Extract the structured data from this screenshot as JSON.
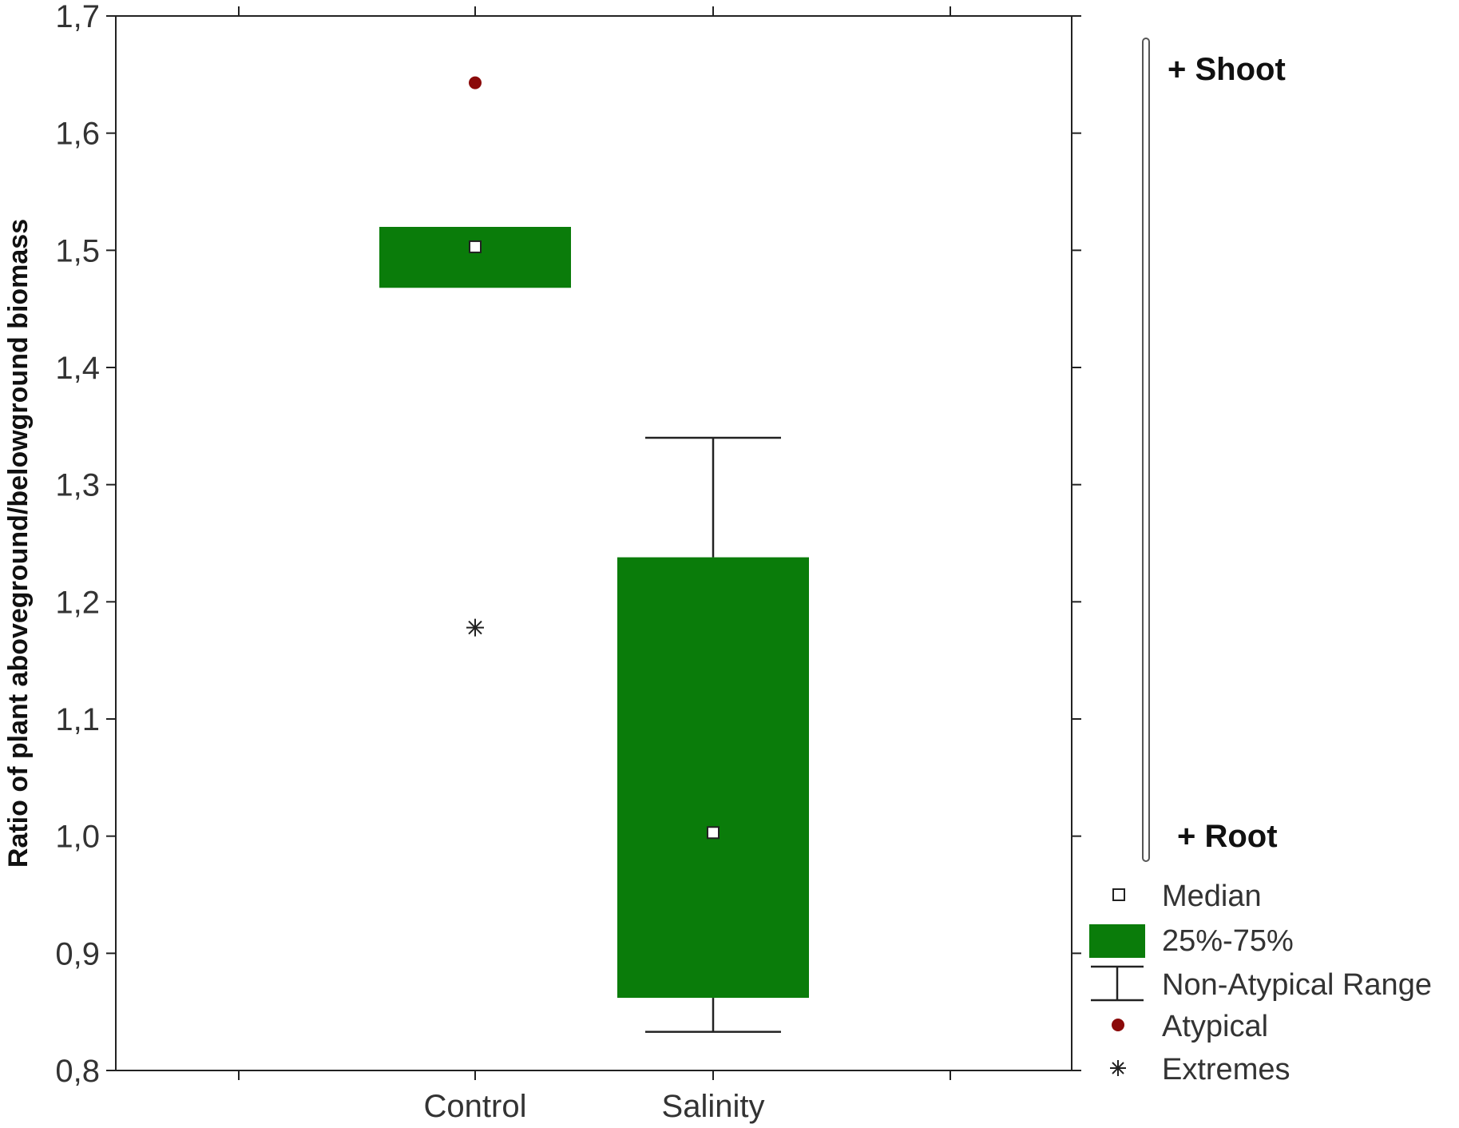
{
  "chart_data": {
    "type": "boxplot",
    "ylabel": "Ratio of plant aboveground/belowground biomass",
    "xlabel": "",
    "ylim": [
      0.8,
      1.7
    ],
    "yticks": [
      0.8,
      0.9,
      1.0,
      1.1,
      1.2,
      1.3,
      1.4,
      1.5,
      1.6,
      1.7
    ],
    "ytick_labels": [
      "0,8",
      "0,9",
      "1,0",
      "1,1",
      "1,2",
      "1,3",
      "1,4",
      "1,5",
      "1,6",
      "1,7"
    ],
    "categories": [
      "Control",
      "Salinity"
    ],
    "groups": [
      {
        "category": "Control",
        "median": 1.503,
        "q1": 1.468,
        "q3": 1.52,
        "whisker_low": null,
        "whisker_high": null,
        "atypical": [
          1.643
        ],
        "extremes": [
          1.178
        ]
      },
      {
        "category": "Salinity",
        "median": 1.003,
        "q1": 0.862,
        "q3": 1.238,
        "whisker_low": 0.833,
        "whisker_high": 1.34,
        "atypical": [],
        "extremes": []
      }
    ],
    "grid": false,
    "legend_position": "right",
    "legend": [
      {
        "key": "median",
        "label": "Median"
      },
      {
        "key": "box",
        "label": "25%-75%"
      },
      {
        "key": "range",
        "label": "Non-Atypical Range"
      },
      {
        "key": "atypical",
        "label": "Atypical"
      },
      {
        "key": "extreme",
        "label": "Extremes"
      }
    ],
    "side_scale": {
      "top_label": "+ Shoot",
      "bottom_label": "+ Root"
    },
    "colors": {
      "box": "#0a7c0a",
      "atypical": "#8b0a0a",
      "axis": "#222222",
      "text": "#333333"
    }
  }
}
